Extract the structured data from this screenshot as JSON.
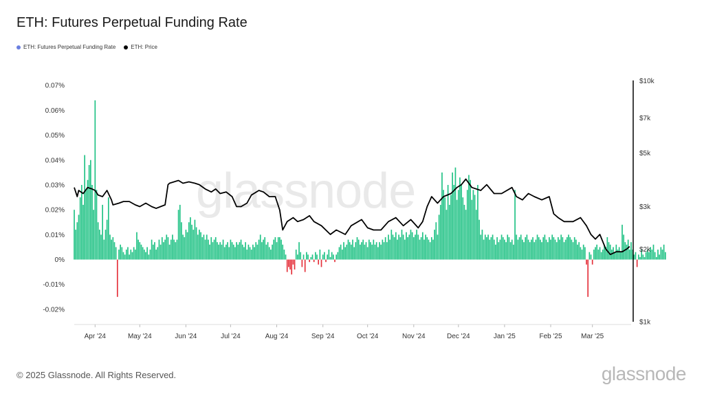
{
  "chart_data": {
    "type": "bar",
    "title": "ETH: Futures Perpetual Funding Rate",
    "series": [
      {
        "name": "ETH: Futures Perpetual Funding Rate",
        "kind": "bar",
        "axis": "left",
        "color": "#21c285",
        "negative_color": "#e5313b",
        "x_start": "2024-03-18",
        "interval": "day",
        "values": [
          0.02,
          0.012,
          0.015,
          0.018,
          0.025,
          0.03,
          0.022,
          0.042,
          0.028,
          0.032,
          0.038,
          0.04,
          0.03,
          0.02,
          0.064,
          0.028,
          0.015,
          0.012,
          0.01,
          0.022,
          0.008,
          0.012,
          0.016,
          0.025,
          0.01,
          0.008,
          0.009,
          0.007,
          0.005,
          -0.015,
          0.004,
          0.006,
          0.005,
          0.003,
          0.002,
          0.004,
          0.005,
          0.002,
          0.004,
          0.003,
          0.005,
          0.004,
          0.011,
          0.008,
          0.007,
          0.006,
          0.005,
          0.004,
          0.003,
          0.005,
          0.002,
          0.004,
          0.008,
          0.006,
          0.007,
          0.004,
          0.005,
          0.008,
          0.006,
          0.009,
          0.007,
          0.008,
          0.01,
          0.009,
          0.006,
          0.008,
          0.01,
          0.008,
          0.007,
          0.008,
          0.02,
          0.022,
          0.015,
          0.01,
          0.009,
          0.012,
          0.011,
          0.015,
          0.017,
          0.014,
          0.012,
          0.016,
          0.013,
          0.01,
          0.012,
          0.011,
          0.009,
          0.01,
          0.008,
          0.01,
          0.008,
          0.006,
          0.009,
          0.007,
          0.008,
          0.009,
          0.007,
          0.006,
          0.007,
          0.006,
          0.008,
          0.005,
          0.006,
          0.007,
          0.005,
          0.008,
          0.007,
          0.006,
          0.005,
          0.007,
          0.006,
          0.007,
          0.008,
          0.006,
          0.005,
          0.007,
          0.004,
          0.006,
          0.005,
          0.004,
          0.006,
          0.005,
          0.007,
          0.006,
          0.008,
          0.01,
          0.007,
          0.008,
          0.009,
          0.006,
          0.007,
          0.005,
          0.004,
          0.006,
          0.008,
          0.009,
          0.007,
          0.009,
          0.009,
          0.008,
          0.006,
          0.004,
          0.002,
          -0.005,
          -0.003,
          -0.004,
          -0.006,
          -0.002,
          -0.004,
          0.004,
          0.002,
          0.007,
          0.003,
          -0.003,
          0.002,
          -0.005,
          0.003,
          0.002,
          -0.001,
          0.001,
          0.002,
          -0.001,
          0.003,
          0.002,
          -0.002,
          0.004,
          -0.003,
          0.002,
          0.003,
          -0.001,
          0.002,
          0.004,
          0.001,
          0.003,
          0.002,
          -0.001,
          0.002,
          0.003,
          0.005,
          0.006,
          0.004,
          0.007,
          0.005,
          0.006,
          0.008,
          0.007,
          0.006,
          0.008,
          0.005,
          0.007,
          0.009,
          0.008,
          0.006,
          0.007,
          0.008,
          0.006,
          0.007,
          0.005,
          0.008,
          0.007,
          0.006,
          0.008,
          0.006,
          0.007,
          0.005,
          0.007,
          0.006,
          0.008,
          0.007,
          0.009,
          0.007,
          0.01,
          0.008,
          0.012,
          0.01,
          0.009,
          0.011,
          0.008,
          0.01,
          0.009,
          0.012,
          0.01,
          0.008,
          0.011,
          0.009,
          0.01,
          0.012,
          0.011,
          0.009,
          0.01,
          0.012,
          0.01,
          0.008,
          0.009,
          0.011,
          0.008,
          0.01,
          0.009,
          0.008,
          0.007,
          0.009,
          0.008,
          0.012,
          0.015,
          0.01,
          0.018,
          0.022,
          0.035,
          0.028,
          0.025,
          0.02,
          0.03,
          0.022,
          0.026,
          0.035,
          0.03,
          0.037,
          0.024,
          0.028,
          0.033,
          0.03,
          0.025,
          0.022,
          0.02,
          0.028,
          0.034,
          0.032,
          0.024,
          0.028,
          0.026,
          0.02,
          0.03,
          0.016,
          0.01,
          0.012,
          0.008,
          0.01,
          0.009,
          0.01,
          0.008,
          0.009,
          0.01,
          0.008,
          0.006,
          0.009,
          0.007,
          0.008,
          0.01,
          0.009,
          0.008,
          0.007,
          0.01,
          0.009,
          0.007,
          0.008,
          0.006,
          0.028,
          0.01,
          0.008,
          0.009,
          0.01,
          0.008,
          0.007,
          0.009,
          0.01,
          0.008,
          0.007,
          0.008,
          0.009,
          0.007,
          0.008,
          0.01,
          0.009,
          0.008,
          0.007,
          0.009,
          0.01,
          0.008,
          0.007,
          0.009,
          0.008,
          0.01,
          0.009,
          0.008,
          0.007,
          0.009,
          0.008,
          0.01,
          0.009,
          0.007,
          0.008,
          0.009,
          0.01,
          0.009,
          0.008,
          0.007,
          0.009,
          0.008,
          0.006,
          0.007,
          0.005,
          0.004,
          0.006,
          0.005,
          -0.002,
          -0.015,
          0.003,
          0.002,
          -0.002,
          0.004,
          0.005,
          0.006,
          0.004,
          0.005,
          0.003,
          0.004,
          0.006,
          0.005,
          0.009,
          0.007,
          0.006,
          0.004,
          0.005,
          0.003,
          0.006,
          0.004,
          0.005,
          0.003,
          0.014,
          0.01,
          0.007,
          0.006,
          0.008,
          0.004,
          0.007,
          0.004,
          0.002,
          0.003,
          -0.003,
          0.002,
          0.001,
          0.004,
          0.002,
          0.001,
          0.003,
          0.004,
          0.003,
          0.005,
          0.004,
          0.006,
          0.003,
          0.001,
          0.004,
          0.002,
          0.005,
          0.004,
          0.006,
          0.003
        ]
      },
      {
        "name": "ETH: Price",
        "kind": "line",
        "axis": "right",
        "color": "#000000",
        "x": [
          "2024-03-18",
          "2024-03-20",
          "2024-03-21",
          "2024-03-24",
          "2024-03-27",
          "2024-03-30",
          "2024-04-01",
          "2024-04-03",
          "2024-04-06",
          "2024-04-09",
          "2024-04-12",
          "2024-04-13",
          "2024-04-17",
          "2024-04-20",
          "2024-04-24",
          "2024-04-28",
          "2024-05-01",
          "2024-05-05",
          "2024-05-09",
          "2024-05-12",
          "2024-05-15",
          "2024-05-18",
          "2024-05-20",
          "2024-05-21",
          "2024-05-24",
          "2024-05-27",
          "2024-05-30",
          "2024-06-03",
          "2024-06-07",
          "2024-06-10",
          "2024-06-14",
          "2024-06-18",
          "2024-06-21",
          "2024-06-24",
          "2024-06-28",
          "2024-07-02",
          "2024-07-05",
          "2024-07-08",
          "2024-07-12",
          "2024-07-15",
          "2024-07-20",
          "2024-07-23",
          "2024-07-27",
          "2024-07-31",
          "2024-08-03",
          "2024-08-05",
          "2024-08-08",
          "2024-08-12",
          "2024-08-15",
          "2024-08-19",
          "2024-08-23",
          "2024-08-26",
          "2024-08-31",
          "2024-09-06",
          "2024-09-10",
          "2024-09-16",
          "2024-09-20",
          "2024-09-27",
          "2024-10-01",
          "2024-10-05",
          "2024-10-10",
          "2024-10-15",
          "2024-10-20",
          "2024-10-25",
          "2024-10-30",
          "2024-11-04",
          "2024-11-07",
          "2024-11-10",
          "2024-11-13",
          "2024-11-17",
          "2024-11-21",
          "2024-11-26",
          "2024-11-30",
          "2024-12-03",
          "2024-12-06",
          "2024-12-10",
          "2024-12-16",
          "2024-12-20",
          "2024-12-25",
          "2024-12-30",
          "2025-01-06",
          "2025-01-09",
          "2025-01-13",
          "2025-01-17",
          "2025-01-21",
          "2025-01-26",
          "2025-01-31",
          "2025-02-03",
          "2025-02-06",
          "2025-02-10",
          "2025-02-16",
          "2025-02-21",
          "2025-02-25",
          "2025-02-28",
          "2025-03-03",
          "2025-03-06",
          "2025-03-10",
          "2025-03-13",
          "2025-03-17",
          "2025-03-21",
          "2025-03-24",
          "2025-03-26"
        ],
        "values": [
          3600,
          3300,
          3500,
          3400,
          3600,
          3550,
          3500,
          3350,
          3300,
          3500,
          3200,
          3050,
          3100,
          3150,
          3150,
          3050,
          3000,
          3100,
          3000,
          2950,
          3000,
          3050,
          3700,
          3750,
          3800,
          3850,
          3750,
          3800,
          3750,
          3700,
          3550,
          3450,
          3550,
          3400,
          3450,
          3300,
          3000,
          3000,
          3100,
          3350,
          3500,
          3450,
          3300,
          3300,
          2900,
          2400,
          2600,
          2700,
          2600,
          2650,
          2750,
          2600,
          2500,
          2300,
          2400,
          2300,
          2500,
          2650,
          2450,
          2400,
          2400,
          2600,
          2700,
          2500,
          2650,
          2450,
          2600,
          3000,
          3300,
          3100,
          3300,
          3400,
          3600,
          3700,
          3900,
          3600,
          3500,
          3700,
          3400,
          3400,
          3600,
          3300,
          3200,
          3400,
          3300,
          3200,
          3300,
          2800,
          2700,
          2600,
          2600,
          2700,
          2500,
          2300,
          2200,
          2300,
          2000,
          1900,
          1950,
          1950,
          2000,
          2050
        ]
      }
    ],
    "yleft": {
      "ticks": [
        -0.0002,
        -0.0001,
        0,
        0.0001,
        0.0002,
        0.0003,
        0.0004,
        0.0005,
        0.0006,
        0.0007
      ],
      "labels": [
        "-0.02%",
        "-0.01%",
        "0%",
        "0.01%",
        "0.02%",
        "0.03%",
        "0.04%",
        "0.05%",
        "0.06%",
        "0.07%"
      ],
      "ylim": [
        -0.00025,
        0.00072
      ]
    },
    "yright": {
      "scale": "log",
      "ticks": [
        1000,
        2000,
        3000,
        5000,
        7000,
        10000
      ],
      "labels": [
        "$1k",
        "$2k",
        "$3k",
        "$5k",
        "$7k",
        "$10k"
      ],
      "ylim": [
        1000,
        10000
      ]
    },
    "xticks": {
      "dates": [
        "2024-04-01",
        "2024-05-01",
        "2024-06-01",
        "2024-07-01",
        "2024-08-01",
        "2024-09-01",
        "2024-10-01",
        "2024-11-01",
        "2024-12-01",
        "2025-01-01",
        "2025-02-01",
        "2025-03-01"
      ],
      "labels": [
        "Apr '24",
        "May '24",
        "Jun '24",
        "Jul '24",
        "Aug '24",
        "Sep '24",
        "Oct '24",
        "Nov '24",
        "Dec '24",
        "Jan '25",
        "Feb '25",
        "Mar '25"
      ]
    },
    "xlim": [
      "2024-03-18",
      "2025-03-27"
    ],
    "grid": false,
    "legend_position": "top-left"
  },
  "watermark": "glassnode",
  "footer": {
    "copyright": "© 2025 Glassnode. All Rights Reserved.",
    "logo": "glassnode"
  }
}
